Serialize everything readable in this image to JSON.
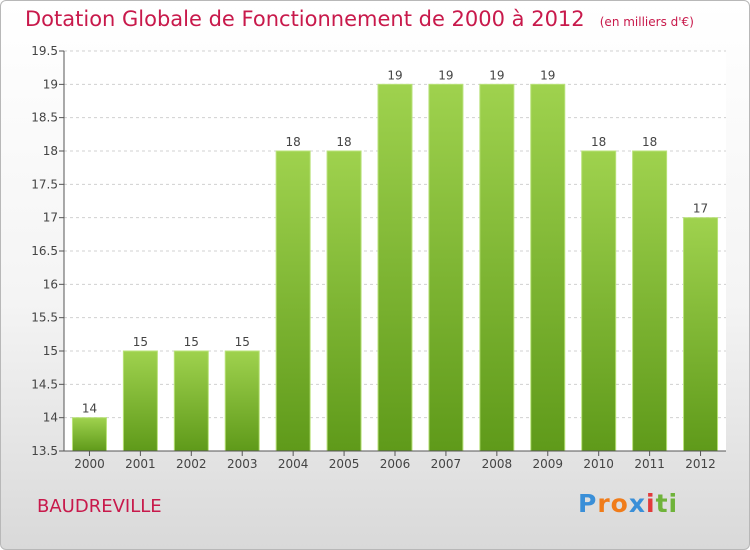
{
  "header": {
    "title": "Dotation Globale de Fonctionnement de 2000 à 2012",
    "unit": "(en milliers d'€)"
  },
  "footer": {
    "commune": "BAUDREVILLE",
    "logo": {
      "letters": [
        "P",
        "r",
        "o",
        "x",
        "i",
        "t",
        "i"
      ],
      "colors": [
        "#3a8fd8",
        "#f07c1a",
        "#f07c1a",
        "#3a8fd8",
        "#e23a3a",
        "#6fb33a",
        "#6fb33a"
      ]
    }
  },
  "chart_data": {
    "type": "bar",
    "categories": [
      "2000",
      "2001",
      "2002",
      "2003",
      "2004",
      "2005",
      "2006",
      "2007",
      "2008",
      "2009",
      "2010",
      "2011",
      "2012"
    ],
    "values": [
      14,
      15,
      15,
      15,
      18,
      18,
      19,
      19,
      19,
      19,
      18,
      18,
      17
    ],
    "data_labels": [
      "14",
      "15",
      "15",
      "15",
      "18",
      "18",
      "19",
      "19",
      "19",
      "19",
      "18",
      "18",
      "17"
    ],
    "ylim": [
      13.5,
      19.5
    ],
    "yticks": [
      13.5,
      14,
      14.5,
      15,
      15.5,
      16,
      16.5,
      17,
      17.5,
      18,
      18.5,
      19,
      19.5
    ],
    "ytick_labels": [
      "13.5",
      "14",
      "14.5",
      "15",
      "15.5",
      "16",
      "16.5",
      "17",
      "17.5",
      "18",
      "18.5",
      "19",
      "19.5"
    ],
    "grid": true,
    "bar_color_light": "#9fd24e",
    "bar_color_dark": "#5f9a1a"
  }
}
